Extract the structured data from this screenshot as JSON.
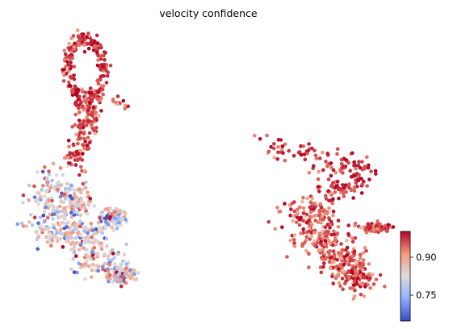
{
  "chart_data": {
    "type": "scatter",
    "title": "velocity confidence",
    "xlabel": "",
    "ylabel": "",
    "axes_visible": false,
    "grid": false,
    "colormap": "coolwarm",
    "colorbar": {
      "placement": "bottom-right",
      "range": [
        0.7,
        0.96
      ],
      "ticks": [
        0.75,
        0.9
      ],
      "tick_labels": [
        "0.75",
        "0.90"
      ]
    },
    "clusters": [
      {
        "name": "",
        "x": [
          0.0,
          1.0
        ],
        "y": [
          0.0,
          1.0
        ],
        "typical_value": 0.94
      },
      {
        "name": "",
        "x": [
          0.0,
          1.0
        ],
        "y": [
          0.0,
          1.0
        ],
        "typical_value": 0.93
      },
      {
        "name": "",
        "x": [
          0.0,
          1.0
        ],
        "y": [
          0.0,
          1.0
        ],
        "typical_value": 0.92
      },
      {
        "name": "",
        "x": [
          0.0,
          1.0
        ],
        "y": [
          0.0,
          1.0
        ],
        "typical_value": 0.85
      },
      {
        "name": "",
        "x": [
          0.0,
          1.0
        ],
        "y": [
          0.0,
          1.0
        ],
        "typical_value": 0.94
      },
      {
        "name": "",
        "x": [
          0.0,
          1.0
        ],
        "y": [
          0.0,
          1.0
        ],
        "typical_value": 0.92
      }
    ]
  }
}
